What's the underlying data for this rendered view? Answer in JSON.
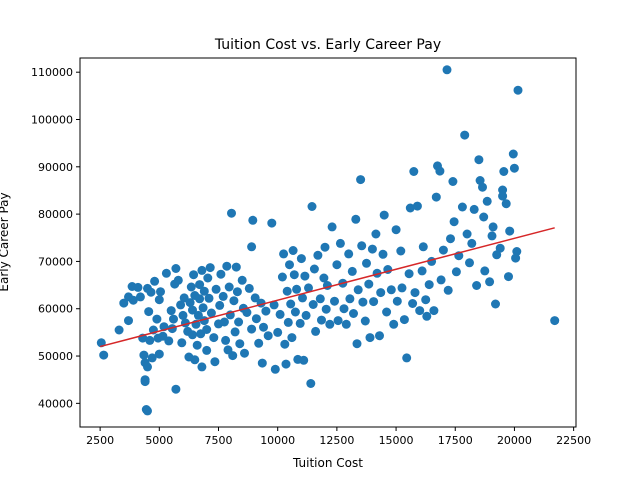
{
  "chart_data": {
    "type": "scatter",
    "title": "Tuition Cost vs. Early Career Pay",
    "xlabel": "Tuition Cost",
    "ylabel": "Early Career Pay",
    "xlim": [
      1650,
      22600
    ],
    "ylim": [
      35000,
      113000
    ],
    "x_ticks": [
      2500,
      5000,
      7500,
      10000,
      12500,
      15000,
      17500,
      20000,
      22500
    ],
    "y_ticks": [
      40000,
      50000,
      60000,
      70000,
      80000,
      90000,
      100000,
      110000
    ],
    "grid": false,
    "legend": "none",
    "point_color": "#1f77b4",
    "trend_color": "#d62728",
    "trend_line": {
      "x": [
        2500,
        21700
      ],
      "y": [
        52000,
        77100
      ]
    },
    "points": [
      [
        2550,
        52800
      ],
      [
        2650,
        50200
      ],
      [
        3300,
        55500
      ],
      [
        3500,
        61200
      ],
      [
        3700,
        62500
      ],
      [
        3700,
        57500
      ],
      [
        3850,
        64700
      ],
      [
        3900,
        61800
      ],
      [
        4100,
        64500
      ],
      [
        4200,
        62500
      ],
      [
        4300,
        53800
      ],
      [
        4350,
        50200
      ],
      [
        4400,
        48600
      ],
      [
        4400,
        45000
      ],
      [
        4400,
        44600
      ],
      [
        4450,
        38700
      ],
      [
        4500,
        38400
      ],
      [
        4500,
        47700
      ],
      [
        4500,
        64300
      ],
      [
        4550,
        59400
      ],
      [
        4600,
        53300
      ],
      [
        4650,
        63500
      ],
      [
        4700,
        49600
      ],
      [
        4750,
        55500
      ],
      [
        4800,
        65800
      ],
      [
        4900,
        57800
      ],
      [
        4950,
        53800
      ],
      [
        5000,
        61900
      ],
      [
        5000,
        50400
      ],
      [
        5050,
        63600
      ],
      [
        5150,
        54200
      ],
      [
        5200,
        56200
      ],
      [
        5300,
        67500
      ],
      [
        5400,
        53200
      ],
      [
        5500,
        59600
      ],
      [
        5550,
        55800
      ],
      [
        5600,
        57800
      ],
      [
        5650,
        65200
      ],
      [
        5700,
        43000
      ],
      [
        5700,
        68500
      ],
      [
        5800,
        66000
      ],
      [
        5900,
        60800
      ],
      [
        5950,
        52800
      ],
      [
        6000,
        58600
      ],
      [
        6050,
        62300
      ],
      [
        6100,
        57000
      ],
      [
        6200,
        55200
      ],
      [
        6250,
        49800
      ],
      [
        6300,
        61300
      ],
      [
        6350,
        64600
      ],
      [
        6400,
        59700
      ],
      [
        6400,
        54500
      ],
      [
        6450,
        67200
      ],
      [
        6500,
        62800
      ],
      [
        6500,
        49200
      ],
      [
        6550,
        56700
      ],
      [
        6600,
        52300
      ],
      [
        6650,
        58600
      ],
      [
        6700,
        65100
      ],
      [
        6700,
        62100
      ],
      [
        6750,
        54700
      ],
      [
        6800,
        68100
      ],
      [
        6800,
        47700
      ],
      [
        6850,
        60200
      ],
      [
        6900,
        57500
      ],
      [
        6900,
        63700
      ],
      [
        7000,
        51200
      ],
      [
        7000,
        55600
      ],
      [
        7050,
        66500
      ],
      [
        7100,
        62200
      ],
      [
        7150,
        68700
      ],
      [
        7200,
        59100
      ],
      [
        7300,
        53900
      ],
      [
        7350,
        48800
      ],
      [
        7400,
        64100
      ],
      [
        7500,
        56800
      ],
      [
        7550,
        60700
      ],
      [
        7600,
        67300
      ],
      [
        7700,
        62600
      ],
      [
        7750,
        57200
      ],
      [
        7800,
        53300
      ],
      [
        7850,
        69000
      ],
      [
        7900,
        51300
      ],
      [
        7950,
        64600
      ],
      [
        8000,
        58700
      ],
      [
        8050,
        80200
      ],
      [
        8100,
        50100
      ],
      [
        8150,
        61700
      ],
      [
        8200,
        55100
      ],
      [
        8250,
        68800
      ],
      [
        8300,
        63600
      ],
      [
        8350,
        57200
      ],
      [
        8400,
        52600
      ],
      [
        8500,
        66000
      ],
      [
        8550,
        60100
      ],
      [
        8600,
        50600
      ],
      [
        8700,
        59200
      ],
      [
        8800,
        64300
      ],
      [
        8900,
        55700
      ],
      [
        8900,
        73100
      ],
      [
        8950,
        78700
      ],
      [
        9050,
        62300
      ],
      [
        9100,
        57900
      ],
      [
        9200,
        52700
      ],
      [
        9300,
        61200
      ],
      [
        9350,
        48500
      ],
      [
        9400,
        56100
      ],
      [
        9500,
        59500
      ],
      [
        9600,
        54300
      ],
      [
        9750,
        78100
      ],
      [
        9850,
        60800
      ],
      [
        9900,
        47200
      ],
      [
        10000,
        55000
      ],
      [
        10100,
        58800
      ],
      [
        10200,
        66700
      ],
      [
        10250,
        71600
      ],
      [
        10300,
        52500
      ],
      [
        10350,
        48300
      ],
      [
        10400,
        63700
      ],
      [
        10450,
        57100
      ],
      [
        10500,
        69300
      ],
      [
        10550,
        61000
      ],
      [
        10600,
        53900
      ],
      [
        10650,
        72300
      ],
      [
        10700,
        67200
      ],
      [
        10750,
        59300
      ],
      [
        10800,
        64100
      ],
      [
        10850,
        49300
      ],
      [
        10950,
        56900
      ],
      [
        11000,
        70600
      ],
      [
        11050,
        62300
      ],
      [
        11100,
        49100
      ],
      [
        11150,
        66900
      ],
      [
        11200,
        58600
      ],
      [
        11300,
        64400
      ],
      [
        11400,
        44200
      ],
      [
        11450,
        81600
      ],
      [
        11500,
        60900
      ],
      [
        11550,
        68400
      ],
      [
        11600,
        55200
      ],
      [
        11700,
        71300
      ],
      [
        11800,
        62100
      ],
      [
        11850,
        57600
      ],
      [
        11950,
        66500
      ],
      [
        12000,
        73000
      ],
      [
        12050,
        59900
      ],
      [
        12100,
        64900
      ],
      [
        12200,
        56700
      ],
      [
        12300,
        77300
      ],
      [
        12400,
        61600
      ],
      [
        12500,
        69300
      ],
      [
        12550,
        57500
      ],
      [
        12650,
        73800
      ],
      [
        12750,
        65400
      ],
      [
        12800,
        60000
      ],
      [
        12900,
        56700
      ],
      [
        13000,
        71600
      ],
      [
        13050,
        62100
      ],
      [
        13150,
        67900
      ],
      [
        13200,
        59000
      ],
      [
        13300,
        78900
      ],
      [
        13350,
        52600
      ],
      [
        13400,
        64000
      ],
      [
        13500,
        87300
      ],
      [
        13550,
        73300
      ],
      [
        13600,
        61400
      ],
      [
        13700,
        57400
      ],
      [
        13750,
        69600
      ],
      [
        13850,
        65200
      ],
      [
        13900,
        53900
      ],
      [
        14000,
        72600
      ],
      [
        14050,
        61500
      ],
      [
        14150,
        75800
      ],
      [
        14200,
        67500
      ],
      [
        14300,
        54300
      ],
      [
        14350,
        63400
      ],
      [
        14450,
        71500
      ],
      [
        14500,
        79800
      ],
      [
        14600,
        59300
      ],
      [
        14650,
        68300
      ],
      [
        14800,
        64000
      ],
      [
        14900,
        56700
      ],
      [
        15000,
        76700
      ],
      [
        15050,
        61600
      ],
      [
        15200,
        72200
      ],
      [
        15250,
        64400
      ],
      [
        15350,
        57700
      ],
      [
        15450,
        49600
      ],
      [
        15550,
        67400
      ],
      [
        15600,
        81300
      ],
      [
        15700,
        61100
      ],
      [
        15750,
        89000
      ],
      [
        15800,
        63400
      ],
      [
        15900,
        81700
      ],
      [
        16000,
        59600
      ],
      [
        16100,
        68000
      ],
      [
        16150,
        73100
      ],
      [
        16250,
        61900
      ],
      [
        16300,
        58400
      ],
      [
        16400,
        65100
      ],
      [
        16500,
        70000
      ],
      [
        16600,
        59600
      ],
      [
        16700,
        83600
      ],
      [
        16750,
        90200
      ],
      [
        16850,
        89100
      ],
      [
        16900,
        66100
      ],
      [
        17000,
        72400
      ],
      [
        17150,
        110500
      ],
      [
        17200,
        63900
      ],
      [
        17300,
        74800
      ],
      [
        17400,
        86900
      ],
      [
        17450,
        78400
      ],
      [
        17550,
        67800
      ],
      [
        17650,
        71200
      ],
      [
        17800,
        81500
      ],
      [
        17900,
        96700
      ],
      [
        18000,
        75800
      ],
      [
        18100,
        69700
      ],
      [
        18200,
        73800
      ],
      [
        18300,
        81000
      ],
      [
        18400,
        64900
      ],
      [
        18500,
        91500
      ],
      [
        18550,
        87100
      ],
      [
        18650,
        85700
      ],
      [
        18700,
        79400
      ],
      [
        18750,
        68000
      ],
      [
        18850,
        82700
      ],
      [
        18950,
        65700
      ],
      [
        19050,
        75400
      ],
      [
        19100,
        77300
      ],
      [
        19200,
        61000
      ],
      [
        19250,
        71400
      ],
      [
        19400,
        72800
      ],
      [
        19500,
        85100
      ],
      [
        19500,
        83800
      ],
      [
        19550,
        89000
      ],
      [
        19650,
        82200
      ],
      [
        19750,
        66800
      ],
      [
        19800,
        76400
      ],
      [
        19950,
        92700
      ],
      [
        20000,
        89700
      ],
      [
        20050,
        70700
      ],
      [
        20100,
        72100
      ],
      [
        20150,
        106200
      ],
      [
        21700,
        57500
      ]
    ]
  }
}
